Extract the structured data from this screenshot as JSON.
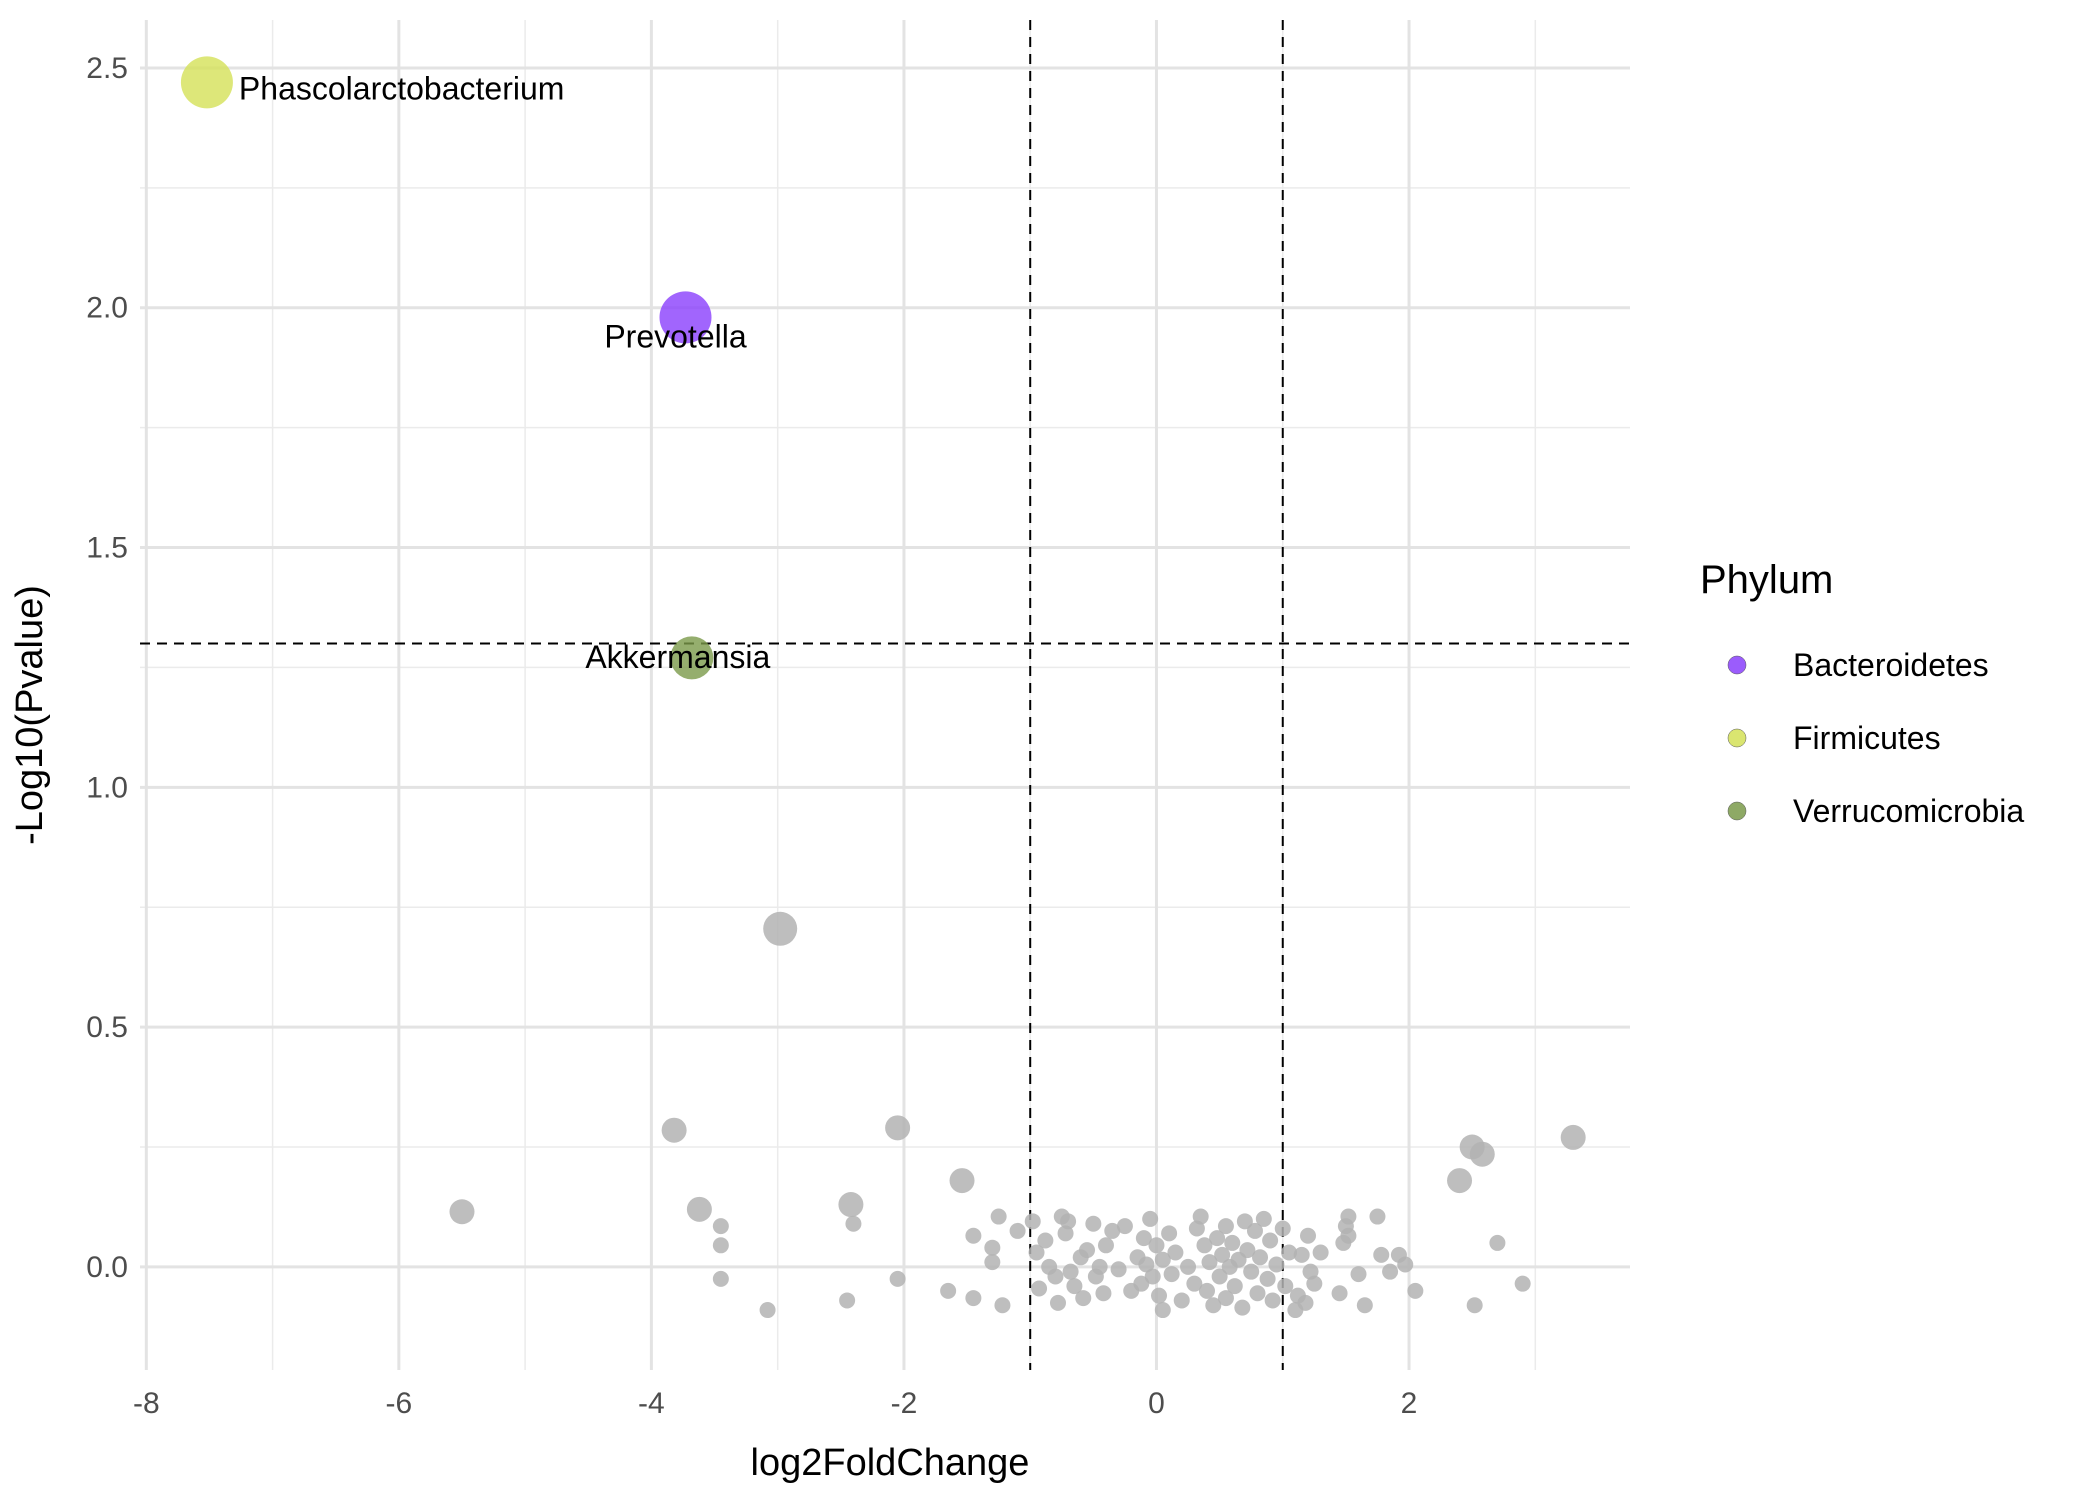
{
  "chart_data": {
    "type": "scatter",
    "xlabel": "log2FoldChange",
    "ylabel": "-Log10(Pvalue)",
    "xlim": [
      -8.05,
      3.75
    ],
    "ylim": [
      -0.215,
      2.6
    ],
    "x_ticks": [
      -8,
      -6,
      -4,
      -2,
      0,
      2
    ],
    "x_tick_labels": [
      "-8",
      "-6",
      "-4",
      "-2",
      "0",
      "2"
    ],
    "y_ticks": [
      0.0,
      0.5,
      1.0,
      1.5,
      2.0,
      2.5
    ],
    "y_tick_labels": [
      "0.0",
      "0.5",
      "1.0",
      "1.5",
      "2.0",
      "2.5"
    ],
    "grid": true,
    "threshold_lines": {
      "x": [
        -1,
        1
      ],
      "y": [
        1.3
      ],
      "style": "dashed"
    },
    "legend": {
      "title": "Phylum",
      "position": "right",
      "entries": [
        {
          "label": "Bacteroidetes",
          "color": "#8a3ffc"
        },
        {
          "label": "Firmicutes",
          "color": "#d4e157"
        },
        {
          "label": "Verrucomicrobia",
          "color": "#7a9a4a"
        }
      ]
    },
    "highlighted_points": [
      {
        "label": "Phascolarctobacterium",
        "phylum": "Firmicutes",
        "x": -7.52,
        "y": 2.47,
        "size": 3
      },
      {
        "label": "Prevotella",
        "phylum": "Bacteroidetes",
        "x": -3.73,
        "y": 1.98,
        "size": 3
      },
      {
        "label": "Akkermansia",
        "phylum": "Verrucomicrobia",
        "x": -3.68,
        "y": 1.27,
        "size": 2.5
      }
    ],
    "other_points_color": "#b3b3b3",
    "other_points": [
      {
        "x": -2.98,
        "y": 0.705,
        "size": 2
      },
      {
        "x": -3.82,
        "y": 0.285,
        "size": 1.5
      },
      {
        "x": -5.5,
        "y": 0.115,
        "size": 1.5
      },
      {
        "x": -3.62,
        "y": 0.12,
        "size": 1.5
      },
      {
        "x": -2.05,
        "y": 0.29,
        "size": 1.5
      },
      {
        "x": -2.42,
        "y": 0.13,
        "size": 1.5
      },
      {
        "x": -1.54,
        "y": 0.18,
        "size": 1.5
      },
      {
        "x": 2.5,
        "y": 0.25,
        "size": 1.5
      },
      {
        "x": 2.58,
        "y": 0.235,
        "size": 1.5
      },
      {
        "x": 2.4,
        "y": 0.18,
        "size": 1.5
      },
      {
        "x": 3.3,
        "y": 0.27,
        "size": 1.5
      },
      {
        "x": -3.45,
        "y": 0.085,
        "size": 1
      },
      {
        "x": -3.45,
        "y": 0.045,
        "size": 1
      },
      {
        "x": -3.45,
        "y": -0.025,
        "size": 1
      },
      {
        "x": -3.08,
        "y": -0.09,
        "size": 1
      },
      {
        "x": -2.4,
        "y": 0.09,
        "size": 1
      },
      {
        "x": -2.45,
        "y": -0.07,
        "size": 1
      },
      {
        "x": -2.05,
        "y": -0.025,
        "size": 1
      },
      {
        "x": -1.65,
        "y": -0.05,
        "size": 1
      },
      {
        "x": -1.45,
        "y": -0.065,
        "size": 1
      },
      {
        "x": -1.45,
        "y": 0.065,
        "size": 1
      },
      {
        "x": -1.3,
        "y": 0.04,
        "size": 1
      },
      {
        "x": -1.3,
        "y": 0.01,
        "size": 1
      },
      {
        "x": -1.25,
        "y": 0.105,
        "size": 1
      },
      {
        "x": -1.22,
        "y": -0.08,
        "size": 1
      },
      {
        "x": -1.1,
        "y": 0.075,
        "size": 1
      },
      {
        "x": -0.98,
        "y": 0.095,
        "size": 1
      },
      {
        "x": -0.95,
        "y": 0.03,
        "size": 1
      },
      {
        "x": -0.93,
        "y": -0.045,
        "size": 1
      },
      {
        "x": -0.88,
        "y": 0.055,
        "size": 1
      },
      {
        "x": -0.85,
        "y": 0.0,
        "size": 1
      },
      {
        "x": -0.8,
        "y": -0.02,
        "size": 1
      },
      {
        "x": -0.78,
        "y": -0.075,
        "size": 1
      },
      {
        "x": -0.75,
        "y": 0.105,
        "size": 1
      },
      {
        "x": -0.72,
        "y": 0.07,
        "size": 1
      },
      {
        "x": -0.7,
        "y": 0.095,
        "size": 1
      },
      {
        "x": -0.68,
        "y": -0.01,
        "size": 1
      },
      {
        "x": -0.65,
        "y": -0.04,
        "size": 1
      },
      {
        "x": -0.6,
        "y": 0.02,
        "size": 1
      },
      {
        "x": -0.58,
        "y": -0.065,
        "size": 1
      },
      {
        "x": -0.55,
        "y": 0.035,
        "size": 1
      },
      {
        "x": -0.5,
        "y": 0.09,
        "size": 1
      },
      {
        "x": -0.48,
        "y": -0.02,
        "size": 1
      },
      {
        "x": -0.45,
        "y": 0.0,
        "size": 1
      },
      {
        "x": -0.42,
        "y": -0.055,
        "size": 1
      },
      {
        "x": -0.4,
        "y": 0.045,
        "size": 1
      },
      {
        "x": -0.35,
        "y": 0.075,
        "size": 1
      },
      {
        "x": -0.3,
        "y": -0.005,
        "size": 1
      },
      {
        "x": -0.25,
        "y": 0.085,
        "size": 1
      },
      {
        "x": -0.2,
        "y": -0.05,
        "size": 1
      },
      {
        "x": -0.15,
        "y": 0.02,
        "size": 1
      },
      {
        "x": -0.12,
        "y": -0.035,
        "size": 1
      },
      {
        "x": -0.1,
        "y": 0.06,
        "size": 1
      },
      {
        "x": -0.08,
        "y": 0.005,
        "size": 1
      },
      {
        "x": -0.05,
        "y": 0.1,
        "size": 1
      },
      {
        "x": -0.03,
        "y": -0.02,
        "size": 1
      },
      {
        "x": 0.0,
        "y": 0.045,
        "size": 1
      },
      {
        "x": 0.02,
        "y": -0.06,
        "size": 1
      },
      {
        "x": 0.05,
        "y": 0.015,
        "size": 1
      },
      {
        "x": 0.05,
        "y": -0.09,
        "size": 1
      },
      {
        "x": 0.1,
        "y": 0.07,
        "size": 1
      },
      {
        "x": 0.12,
        "y": -0.015,
        "size": 1
      },
      {
        "x": 0.15,
        "y": 0.03,
        "size": 1
      },
      {
        "x": 0.2,
        "y": -0.07,
        "size": 1
      },
      {
        "x": 0.25,
        "y": 0.0,
        "size": 1
      },
      {
        "x": 0.3,
        "y": -0.035,
        "size": 1
      },
      {
        "x": 0.32,
        "y": 0.08,
        "size": 1
      },
      {
        "x": 0.35,
        "y": 0.105,
        "size": 1
      },
      {
        "x": 0.38,
        "y": 0.045,
        "size": 1
      },
      {
        "x": 0.4,
        "y": -0.05,
        "size": 1
      },
      {
        "x": 0.42,
        "y": 0.01,
        "size": 1
      },
      {
        "x": 0.45,
        "y": -0.08,
        "size": 1
      },
      {
        "x": 0.48,
        "y": 0.06,
        "size": 1
      },
      {
        "x": 0.5,
        "y": -0.02,
        "size": 1
      },
      {
        "x": 0.52,
        "y": 0.025,
        "size": 1
      },
      {
        "x": 0.55,
        "y": -0.065,
        "size": 1
      },
      {
        "x": 0.55,
        "y": 0.085,
        "size": 1
      },
      {
        "x": 0.58,
        "y": 0.0,
        "size": 1
      },
      {
        "x": 0.6,
        "y": 0.05,
        "size": 1
      },
      {
        "x": 0.62,
        "y": -0.04,
        "size": 1
      },
      {
        "x": 0.65,
        "y": 0.015,
        "size": 1
      },
      {
        "x": 0.68,
        "y": -0.085,
        "size": 1
      },
      {
        "x": 0.7,
        "y": 0.095,
        "size": 1
      },
      {
        "x": 0.72,
        "y": 0.035,
        "size": 1
      },
      {
        "x": 0.75,
        "y": -0.01,
        "size": 1
      },
      {
        "x": 0.78,
        "y": 0.075,
        "size": 1
      },
      {
        "x": 0.8,
        "y": -0.055,
        "size": 1
      },
      {
        "x": 0.82,
        "y": 0.02,
        "size": 1
      },
      {
        "x": 0.85,
        "y": 0.1,
        "size": 1
      },
      {
        "x": 0.88,
        "y": -0.025,
        "size": 1
      },
      {
        "x": 0.9,
        "y": 0.055,
        "size": 1
      },
      {
        "x": 0.92,
        "y": -0.07,
        "size": 1
      },
      {
        "x": 0.95,
        "y": 0.005,
        "size": 1
      },
      {
        "x": 1.0,
        "y": 0.08,
        "size": 1
      },
      {
        "x": 1.02,
        "y": -0.04,
        "size": 1
      },
      {
        "x": 1.05,
        "y": 0.03,
        "size": 1
      },
      {
        "x": 1.1,
        "y": -0.09,
        "size": 1
      },
      {
        "x": 1.12,
        "y": -0.06,
        "size": 1
      },
      {
        "x": 1.15,
        "y": 0.025,
        "size": 1
      },
      {
        "x": 1.18,
        "y": -0.075,
        "size": 1
      },
      {
        "x": 1.2,
        "y": 0.065,
        "size": 1
      },
      {
        "x": 1.22,
        "y": -0.01,
        "size": 1
      },
      {
        "x": 1.25,
        "y": -0.035,
        "size": 1
      },
      {
        "x": 1.3,
        "y": 0.03,
        "size": 1
      },
      {
        "x": 1.45,
        "y": -0.055,
        "size": 1
      },
      {
        "x": 1.48,
        "y": 0.05,
        "size": 1
      },
      {
        "x": 1.5,
        "y": 0.085,
        "size": 1
      },
      {
        "x": 1.52,
        "y": 0.105,
        "size": 1
      },
      {
        "x": 1.52,
        "y": 0.065,
        "size": 1
      },
      {
        "x": 1.6,
        "y": -0.015,
        "size": 1
      },
      {
        "x": 1.65,
        "y": -0.08,
        "size": 1
      },
      {
        "x": 1.75,
        "y": 0.105,
        "size": 1
      },
      {
        "x": 1.78,
        "y": 0.025,
        "size": 1
      },
      {
        "x": 1.85,
        "y": -0.01,
        "size": 1
      },
      {
        "x": 1.92,
        "y": 0.025,
        "size": 1
      },
      {
        "x": 1.97,
        "y": 0.005,
        "size": 1
      },
      {
        "x": 2.05,
        "y": -0.05,
        "size": 1
      },
      {
        "x": 2.52,
        "y": -0.08,
        "size": 1
      },
      {
        "x": 2.7,
        "y": 0.05,
        "size": 1
      },
      {
        "x": 2.9,
        "y": -0.035,
        "size": 1
      }
    ]
  }
}
